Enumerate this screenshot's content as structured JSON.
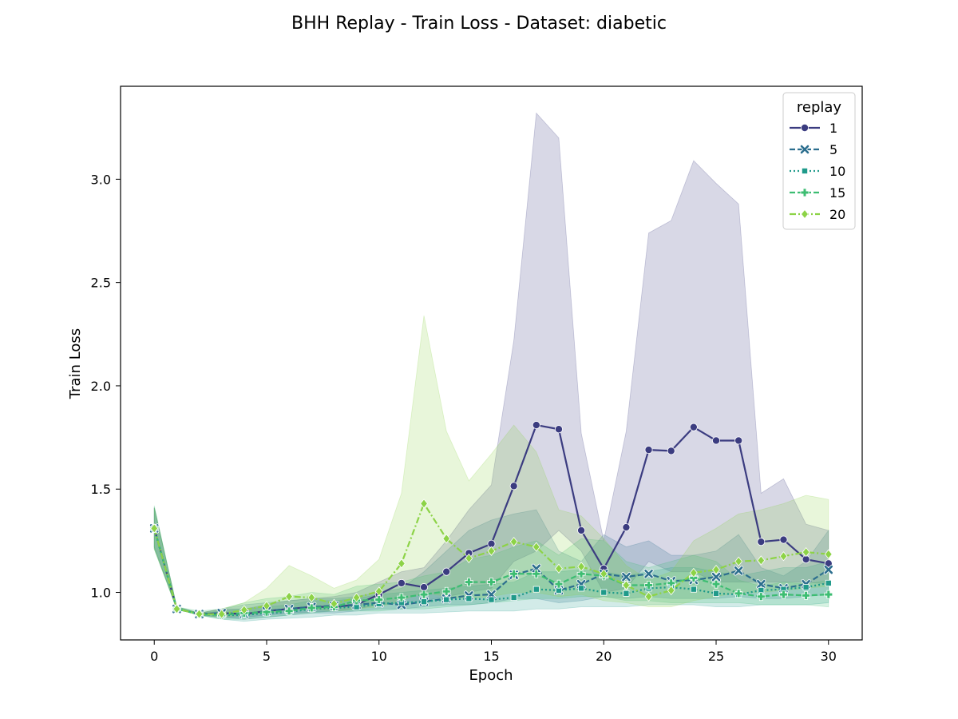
{
  "chart_data": {
    "type": "line",
    "title": "BHH Replay - Train Loss - Dataset: diabetic",
    "xlabel": "Epoch",
    "ylabel": "Train Loss",
    "xlim": [
      -1.5,
      31.5
    ],
    "ylim": [
      0.77,
      3.45
    ],
    "xticks": [
      0,
      5,
      10,
      15,
      20,
      25,
      30
    ],
    "yticks": [
      1.0,
      1.5,
      2.0,
      2.5,
      3.0
    ],
    "grid": false,
    "legend": {
      "title": "replay",
      "placement": "top-right"
    },
    "x": [
      0,
      1,
      2,
      3,
      4,
      5,
      6,
      7,
      8,
      9,
      10,
      11,
      12,
      13,
      14,
      15,
      16,
      17,
      18,
      19,
      20,
      21,
      22,
      23,
      24,
      25,
      26,
      27,
      28,
      29,
      30
    ],
    "series": [
      {
        "name": "1",
        "color": "#3b3c80",
        "dash": "solid",
        "marker": "circle",
        "values": [
          1.31,
          0.92,
          0.895,
          0.9,
          0.895,
          0.91,
          0.92,
          0.93,
          0.93,
          0.94,
          0.99,
          1.045,
          1.025,
          1.1,
          1.19,
          1.235,
          1.515,
          1.81,
          1.79,
          1.3,
          1.115,
          1.315,
          1.69,
          1.685,
          1.8,
          1.735,
          1.735,
          1.245,
          1.255,
          1.16,
          1.14
        ],
        "lower": [
          1.22,
          0.92,
          0.89,
          0.88,
          0.88,
          0.89,
          0.9,
          0.905,
          0.91,
          0.92,
          0.94,
          0.95,
          0.96,
          0.98,
          1.0,
          1.02,
          1.15,
          1.2,
          1.3,
          1.2,
          1.0,
          1.02,
          1.15,
          1.1,
          1.1,
          1.05,
          1.05,
          1.05,
          1.05,
          1.05,
          1.04
        ],
        "upper": [
          1.41,
          0.93,
          0.9,
          0.92,
          0.92,
          0.94,
          0.96,
          0.97,
          0.98,
          1.0,
          1.05,
          1.1,
          1.12,
          1.25,
          1.4,
          1.52,
          2.22,
          3.32,
          3.2,
          1.77,
          1.25,
          1.78,
          2.74,
          2.8,
          3.09,
          2.98,
          2.88,
          1.48,
          1.55,
          1.33,
          1.3
        ]
      },
      {
        "name": "5",
        "color": "#2c6e8e",
        "dash": "dashed",
        "marker": "x",
        "values": [
          1.31,
          0.92,
          0.895,
          0.9,
          0.895,
          0.91,
          0.92,
          0.93,
          0.935,
          0.94,
          0.95,
          0.94,
          0.955,
          0.97,
          0.985,
          0.99,
          1.085,
          1.115,
          1.01,
          1.04,
          1.09,
          1.075,
          1.09,
          1.055,
          1.06,
          1.075,
          1.105,
          1.04,
          1.02,
          1.04,
          1.11
        ],
        "lower": [
          1.22,
          0.92,
          0.89,
          0.88,
          0.87,
          0.88,
          0.89,
          0.9,
          0.9,
          0.91,
          0.92,
          0.92,
          0.93,
          0.94,
          0.94,
          0.95,
          0.97,
          0.97,
          0.95,
          0.96,
          0.98,
          0.97,
          0.98,
          0.97,
          0.97,
          0.97,
          0.98,
          0.97,
          0.97,
          0.98,
          0.99
        ],
        "upper": [
          1.41,
          0.93,
          0.9,
          0.92,
          0.94,
          0.95,
          0.96,
          0.97,
          0.97,
          0.98,
          1.0,
          1.02,
          1.1,
          1.2,
          1.3,
          1.35,
          1.38,
          1.4,
          1.2,
          1.15,
          1.28,
          1.22,
          1.25,
          1.18,
          1.18,
          1.2,
          1.28,
          1.12,
          1.08,
          1.15,
          1.3
        ]
      },
      {
        "name": "10",
        "color": "#1f9a8a",
        "dash": "dotted",
        "marker": "square",
        "values": [
          1.31,
          0.92,
          0.895,
          0.89,
          0.89,
          0.9,
          0.905,
          0.92,
          0.925,
          0.93,
          0.945,
          0.95,
          0.955,
          0.965,
          0.97,
          0.965,
          0.975,
          1.015,
          1.01,
          1.02,
          1.0,
          0.995,
          1.02,
          1.025,
          1.015,
          0.995,
          0.99,
          1.01,
          1.015,
          1.025,
          1.045
        ],
        "lower": [
          1.21,
          0.92,
          0.89,
          0.87,
          0.86,
          0.87,
          0.875,
          0.88,
          0.89,
          0.89,
          0.9,
          0.9,
          0.9,
          0.905,
          0.91,
          0.91,
          0.91,
          0.92,
          0.92,
          0.93,
          0.93,
          0.93,
          0.94,
          0.94,
          0.94,
          0.93,
          0.93,
          0.94,
          0.94,
          0.94,
          0.95
        ],
        "upper": [
          1.41,
          0.93,
          0.9,
          0.91,
          0.92,
          0.93,
          0.94,
          0.96,
          0.96,
          0.97,
          0.99,
          1.0,
          1.01,
          1.02,
          1.03,
          1.04,
          1.05,
          1.1,
          1.1,
          1.11,
          1.1,
          1.08,
          1.1,
          1.12,
          1.12,
          1.1,
          1.08,
          1.1,
          1.12,
          1.12,
          1.15
        ]
      },
      {
        "name": "15",
        "color": "#3dbd72",
        "dash": "dashed",
        "marker": "plus",
        "values": [
          1.31,
          0.92,
          0.895,
          0.89,
          0.9,
          0.905,
          0.91,
          0.925,
          0.93,
          0.96,
          0.965,
          0.975,
          0.99,
          1.005,
          1.05,
          1.05,
          1.09,
          1.09,
          1.04,
          1.09,
          1.08,
          1.035,
          1.035,
          1.045,
          1.07,
          1.04,
          0.995,
          0.98,
          0.99,
          0.985,
          0.99
        ],
        "lower": [
          1.21,
          0.92,
          0.89,
          0.87,
          0.87,
          0.88,
          0.89,
          0.9,
          0.91,
          0.91,
          0.91,
          0.92,
          0.92,
          0.93,
          0.94,
          0.95,
          0.96,
          0.97,
          0.97,
          0.98,
          0.98,
          0.96,
          0.96,
          0.95,
          0.95,
          0.95,
          0.95,
          0.94,
          0.94,
          0.94,
          0.93
        ],
        "upper": [
          1.42,
          0.93,
          0.91,
          0.92,
          0.95,
          0.97,
          0.98,
          1.0,
          0.99,
          1.03,
          1.04,
          1.05,
          1.08,
          1.1,
          1.16,
          1.18,
          1.22,
          1.25,
          1.18,
          1.26,
          1.25,
          1.15,
          1.12,
          1.15,
          1.18,
          1.15,
          1.06,
          1.03,
          1.05,
          1.04,
          1.06
        ]
      },
      {
        "name": "20",
        "color": "#8dd347",
        "dash": "dashdot",
        "marker": "diamond",
        "values": [
          1.31,
          0.92,
          0.895,
          0.895,
          0.915,
          0.935,
          0.98,
          0.975,
          0.945,
          0.975,
          1.005,
          1.14,
          1.43,
          1.26,
          1.165,
          1.2,
          1.245,
          1.22,
          1.115,
          1.125,
          1.09,
          1.035,
          0.98,
          1.01,
          1.095,
          1.11,
          1.15,
          1.155,
          1.175,
          1.195,
          1.185
        ],
        "lower": [
          1.21,
          0.92,
          0.89,
          0.88,
          0.89,
          0.9,
          0.92,
          0.92,
          0.91,
          0.92,
          0.93,
          0.96,
          1.0,
          0.98,
          0.97,
          0.98,
          1.0,
          1.0,
          0.98,
          0.99,
          0.96,
          0.95,
          0.93,
          0.93,
          0.96,
          0.98,
          1.0,
          1.0,
          1.01,
          1.02,
          1.03
        ],
        "upper": [
          1.41,
          0.93,
          0.9,
          0.92,
          0.95,
          1.02,
          1.13,
          1.08,
          1.02,
          1.06,
          1.16,
          1.48,
          2.34,
          1.78,
          1.54,
          1.67,
          1.81,
          1.68,
          1.4,
          1.37,
          1.26,
          1.13,
          1.06,
          1.1,
          1.25,
          1.31,
          1.38,
          1.4,
          1.43,
          1.47,
          1.45
        ]
      }
    ]
  }
}
